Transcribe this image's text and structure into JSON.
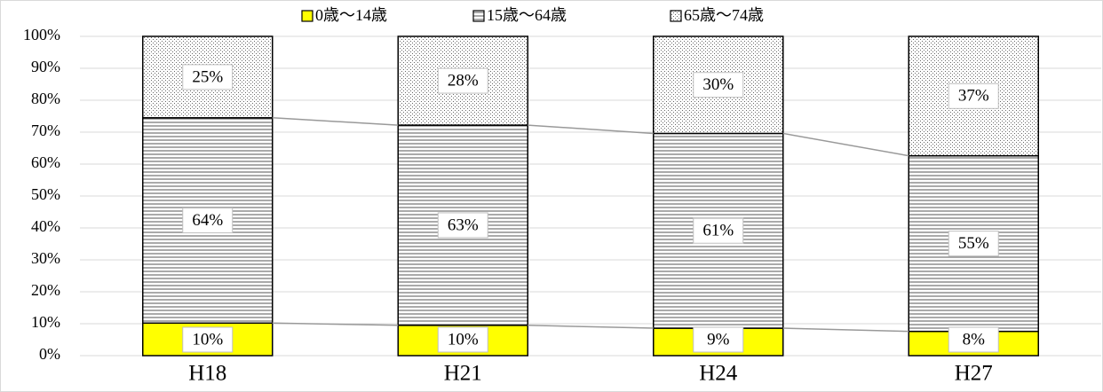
{
  "chart_data": {
    "type": "stacked_bar",
    "categories": [
      "H18",
      "H21",
      "H24",
      "H27"
    ],
    "series": [
      {
        "name": "0歳～14歳",
        "color": "#ffff00",
        "pattern": "solid",
        "values": [
          10.2,
          9.5,
          8.6,
          7.6
        ],
        "value_labels": [
          "10%",
          "10%",
          "9%",
          "8%"
        ]
      },
      {
        "name": "15歳～64歳",
        "color": "#ffffff",
        "pattern": "horizontal",
        "values": [
          64.3,
          62.7,
          61.0,
          55.0
        ],
        "value_labels": [
          "64%",
          "63%",
          "61%",
          "55%"
        ]
      },
      {
        "name": "65歳～74歳",
        "color": "#ffffff",
        "pattern": "dots",
        "values": [
          25.5,
          27.8,
          30.4,
          37.4
        ],
        "value_labels": [
          "25%",
          "28%",
          "30%",
          "37%"
        ]
      }
    ],
    "ylim": [
      0,
      100
    ],
    "yticks": [
      {
        "value": 0,
        "label": "0%"
      },
      {
        "value": 10,
        "label": "10%"
      },
      {
        "value": 20,
        "label": "20%"
      },
      {
        "value": 30,
        "label": "30%"
      },
      {
        "value": 40,
        "label": "40%"
      },
      {
        "value": 50,
        "label": "50%"
      },
      {
        "value": 60,
        "label": "60%"
      },
      {
        "value": 70,
        "label": "70%"
      },
      {
        "value": 80,
        "label": "80%"
      },
      {
        "value": 90,
        "label": "90%"
      },
      {
        "value": 100,
        "label": "100%"
      }
    ],
    "grid": true,
    "series_lines": true,
    "legend": "top"
  }
}
